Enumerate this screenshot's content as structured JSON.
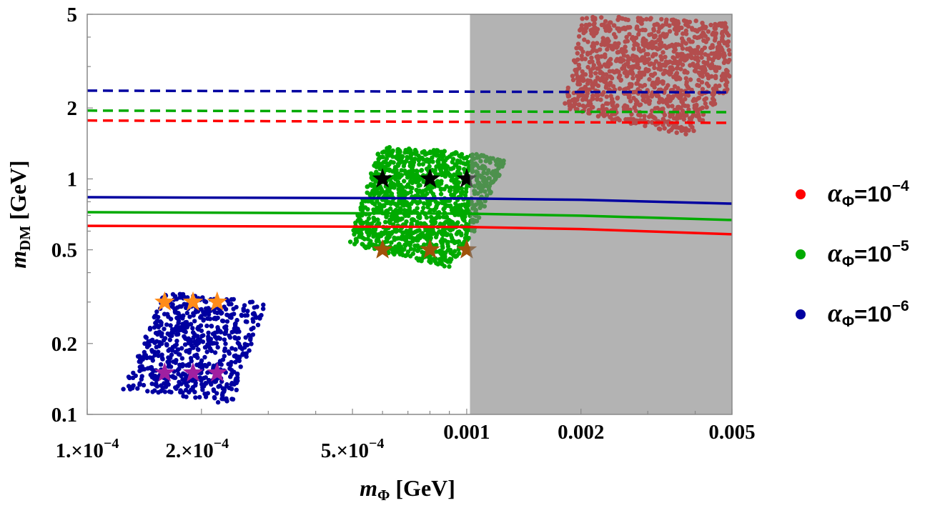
{
  "chart_data": {
    "type": "scatter",
    "xlabel": {
      "main": "m",
      "sub": "Φ",
      "unit": " [GeV]"
    },
    "ylabel": {
      "main": "m",
      "sub": "DM",
      "unit": " [GeV]"
    },
    "xscale": "log",
    "yscale": "log",
    "xlim": [
      0.0001,
      0.005
    ],
    "ylim": [
      0.1,
      5
    ],
    "xticks": [
      {
        "value": 0.0001,
        "label": "1.×10",
        "exp": "−4"
      },
      {
        "value": 0.0002,
        "label": "2.×10",
        "exp": "−4"
      },
      {
        "value": 0.0005,
        "label": "5.×10",
        "exp": "−4"
      },
      {
        "value": 0.001,
        "label": "0.001",
        "exp": ""
      },
      {
        "value": 0.002,
        "label": "0.002",
        "exp": ""
      },
      {
        "value": 0.005,
        "label": "0.005",
        "exp": ""
      }
    ],
    "yticks": [
      {
        "value": 0.1,
        "label": "0.1"
      },
      {
        "value": 0.2,
        "label": "0.2"
      },
      {
        "value": 0.5,
        "label": "0.5"
      },
      {
        "value": 1,
        "label": "1"
      },
      {
        "value": 2,
        "label": "2"
      },
      {
        "value": 5,
        "label": "5"
      }
    ],
    "grid": false,
    "excluded_region": {
      "x_from": 0.00102,
      "x_to": 0.005,
      "color": "#b0b0b0"
    },
    "series": [
      {
        "name": "α_Φ=10^-4",
        "color": "#ff0000",
        "solid_line": {
          "x": [
            0.0001,
            0.001,
            0.002,
            0.005
          ],
          "y": [
            0.632,
            0.625,
            0.612,
            0.582
          ]
        },
        "dashed_line": {
          "x": [
            0.0001,
            0.005
          ],
          "y": [
            1.77,
            1.73
          ]
        },
        "scatter_region": [
          [
            0.00202,
            5.0
          ],
          [
            0.0018,
            2.0
          ],
          [
            0.0025,
            1.75
          ],
          [
            0.0039,
            1.52
          ],
          [
            0.005,
            2.5
          ],
          [
            0.005,
            4.6
          ]
        ]
      },
      {
        "name": "α_Φ=10^-5",
        "color": "#00aa00",
        "solid_line": {
          "x": [
            0.0001,
            0.001,
            0.002,
            0.005
          ],
          "y": [
            0.722,
            0.712,
            0.698,
            0.669
          ]
        },
        "dashed_line": {
          "x": [
            0.0001,
            0.005
          ],
          "y": [
            1.95,
            1.92
          ]
        },
        "scatter_region": [
          [
            0.000487,
            0.53
          ],
          [
            0.00059,
            1.37
          ],
          [
            0.001,
            1.3
          ],
          [
            0.00127,
            1.2
          ],
          [
            0.00105,
            0.6
          ],
          [
            0.0009,
            0.42
          ]
        ]
      },
      {
        "name": "α_Φ=10^-6",
        "color": "#0000a0",
        "solid_line": {
          "x": [
            0.0001,
            0.001,
            0.002,
            0.005
          ],
          "y": [
            0.836,
            0.826,
            0.815,
            0.785
          ]
        },
        "dashed_line": {
          "x": [
            0.0001,
            0.005
          ],
          "y": [
            2.37,
            2.33
          ]
        },
        "scatter_region": [
          [
            0.000124,
            0.128
          ],
          [
            0.00016,
            0.33
          ],
          [
            0.000296,
            0.3
          ],
          [
            0.00024,
            0.11
          ]
        ]
      }
    ],
    "benchmark_stars": [
      {
        "color": "#000000",
        "points": [
          [
            0.0006,
            1.0
          ],
          [
            0.0008,
            1.0
          ],
          [
            0.001,
            1.0
          ]
        ]
      },
      {
        "color": "#a0520a",
        "points": [
          [
            0.0006,
            0.5
          ],
          [
            0.0008,
            0.5
          ],
          [
            0.001,
            0.5
          ]
        ]
      },
      {
        "color": "#ff8c1a",
        "points": [
          [
            0.00016,
            0.3
          ],
          [
            0.00019,
            0.3
          ],
          [
            0.00022,
            0.3
          ]
        ]
      },
      {
        "color": "#a020a0",
        "points": [
          [
            0.00016,
            0.15
          ],
          [
            0.00019,
            0.15
          ],
          [
            0.00022,
            0.15
          ]
        ]
      }
    ],
    "legend": {
      "placement": "right",
      "entries": [
        {
          "label": "α",
          "sub": "Φ",
          "text": "=10",
          "exp": "−4",
          "color": "#ff0000"
        },
        {
          "label": "α",
          "sub": "Φ",
          "text": "=10",
          "exp": "−5",
          "color": "#00aa00"
        },
        {
          "label": "α",
          "sub": "Φ",
          "text": "=10",
          "exp": "−6",
          "color": "#0000a0"
        }
      ]
    }
  }
}
